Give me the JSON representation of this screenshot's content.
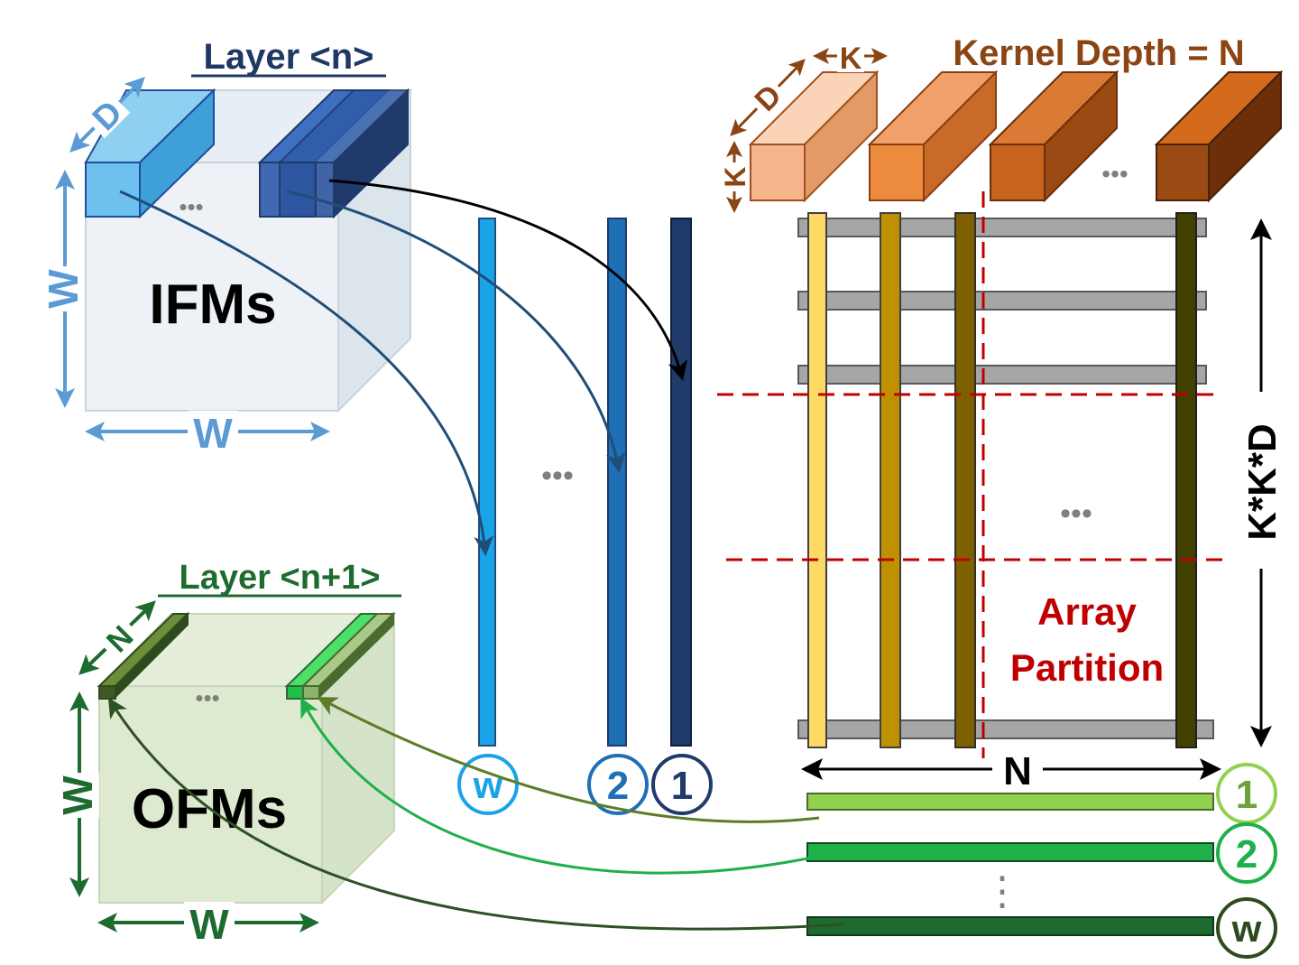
{
  "ifm": {
    "layer_label": "Layer <n>",
    "title": "IFMs",
    "dim_d": "D",
    "dim_w_side": "W",
    "dim_w_bottom": "W",
    "ellipsis": "•••"
  },
  "ofm": {
    "layer_label": "Layer <n+1>",
    "title": "OFMs",
    "dim_n": "N",
    "dim_w_side": "W",
    "dim_w_bottom": "W",
    "ellipsis": "•••"
  },
  "kernel": {
    "label": "Kernel Depth = N",
    "dim_k_top": "K",
    "dim_d": "D",
    "dim_k_side": "K",
    "ellipsis": "•••"
  },
  "array": {
    "partition_line1": "Array",
    "partition_line2": "Partition",
    "height_label": "K*K*D",
    "width_label": "N",
    "ellipsis": "•••",
    "vertical_ellipsis": "⋮"
  },
  "input_vectors": {
    "ellipsis": "•••",
    "circle_w": "w",
    "circle_2": "2",
    "circle_1": "1"
  },
  "outputs": {
    "circle_1": "1",
    "circle_2": "2",
    "circle_w": "w"
  },
  "colors": {
    "ifm_light": "#5DB8E8",
    "ifm_mid": "#1F6FB5",
    "ifm_dark": "#1F3A6B",
    "kernel_1": "#F6B48A",
    "kernel_2": "#EC8A3E",
    "kernel_3": "#C8631E",
    "kernel_4": "#9A4A12",
    "col_1": "#FFD966",
    "col_2": "#BF9000",
    "col_3": "#7F6000",
    "col_4": "#404000",
    "row_grey": "#A6A6A6",
    "partition_red": "#C00000",
    "out_1": "#92D050",
    "out_2": "#1FB04A",
    "out_3": "#1E6B2F",
    "label_brown": "#8B4513",
    "label_green": "#1E6B2F",
    "label_navy": "#1F3864"
  }
}
